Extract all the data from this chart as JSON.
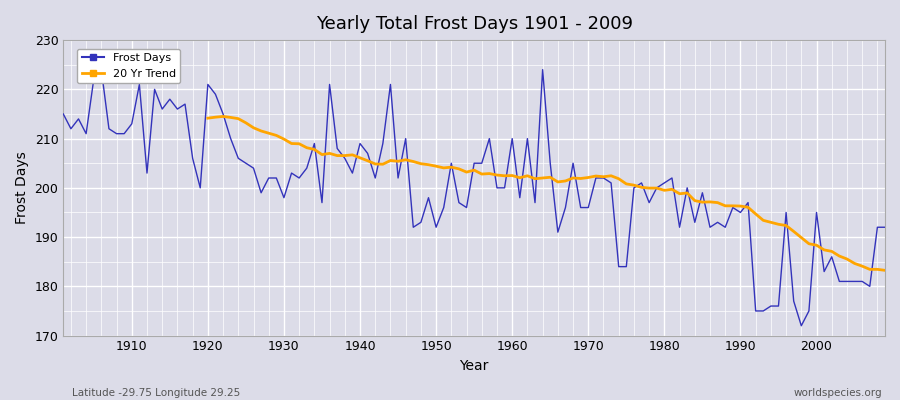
{
  "title": "Yearly Total Frost Days 1901 - 2009",
  "xlabel": "Year",
  "ylabel": "Frost Days",
  "footnote_left": "Latitude -29.75 Longitude 29.25",
  "footnote_right": "worldspecies.org",
  "legend_labels": [
    "Frost Days",
    "20 Yr Trend"
  ],
  "line_color": "#3333bb",
  "trend_color": "#FFA500",
  "bg_color": "#dcdce8",
  "plot_bg_color": "#dcdce8",
  "ylim": [
    170,
    230
  ],
  "xlim": [
    1901,
    2009
  ],
  "yticks": [
    170,
    180,
    190,
    200,
    210,
    220,
    230
  ],
  "xticks": [
    1910,
    1920,
    1930,
    1940,
    1950,
    1960,
    1970,
    1980,
    1990,
    2000
  ],
  "years": [
    1901,
    1902,
    1903,
    1904,
    1905,
    1906,
    1907,
    1908,
    1909,
    1910,
    1911,
    1912,
    1913,
    1914,
    1915,
    1916,
    1917,
    1918,
    1919,
    1920,
    1921,
    1922,
    1923,
    1924,
    1925,
    1926,
    1927,
    1928,
    1929,
    1930,
    1931,
    1932,
    1933,
    1934,
    1935,
    1936,
    1937,
    1938,
    1939,
    1940,
    1941,
    1942,
    1943,
    1944,
    1945,
    1946,
    1947,
    1948,
    1949,
    1950,
    1951,
    1952,
    1953,
    1954,
    1955,
    1956,
    1957,
    1958,
    1959,
    1960,
    1961,
    1962,
    1963,
    1964,
    1965,
    1966,
    1967,
    1968,
    1969,
    1970,
    1971,
    1972,
    1973,
    1974,
    1975,
    1976,
    1977,
    1978,
    1979,
    1980,
    1981,
    1982,
    1983,
    1984,
    1985,
    1986,
    1987,
    1988,
    1989,
    1990,
    1991,
    1992,
    1993,
    1994,
    1995,
    1996,
    1997,
    1998,
    1999,
    2000,
    2001,
    2002,
    2003,
    2004,
    2005,
    2006,
    2007,
    2008,
    2009
  ],
  "frost_days": [
    215,
    212,
    214,
    211,
    222,
    224,
    212,
    211,
    211,
    213,
    221,
    203,
    220,
    216,
    218,
    216,
    217,
    206,
    200,
    221,
    219,
    215,
    210,
    206,
    205,
    204,
    199,
    202,
    202,
    198,
    203,
    202,
    204,
    209,
    197,
    221,
    208,
    206,
    203,
    209,
    207,
    202,
    209,
    221,
    202,
    210,
    192,
    193,
    198,
    192,
    196,
    205,
    197,
    196,
    205,
    205,
    210,
    200,
    200,
    210,
    198,
    210,
    197,
    224,
    205,
    191,
    196,
    205,
    196,
    196,
    202,
    202,
    201,
    184,
    184,
    200,
    201,
    197,
    200,
    201,
    202,
    192,
    200,
    193,
    199,
    192,
    193,
    192,
    196,
    195,
    197,
    175,
    175,
    176,
    176,
    195,
    177,
    172,
    175,
    195,
    183,
    186,
    181,
    181,
    181,
    181,
    180,
    192,
    192
  ]
}
